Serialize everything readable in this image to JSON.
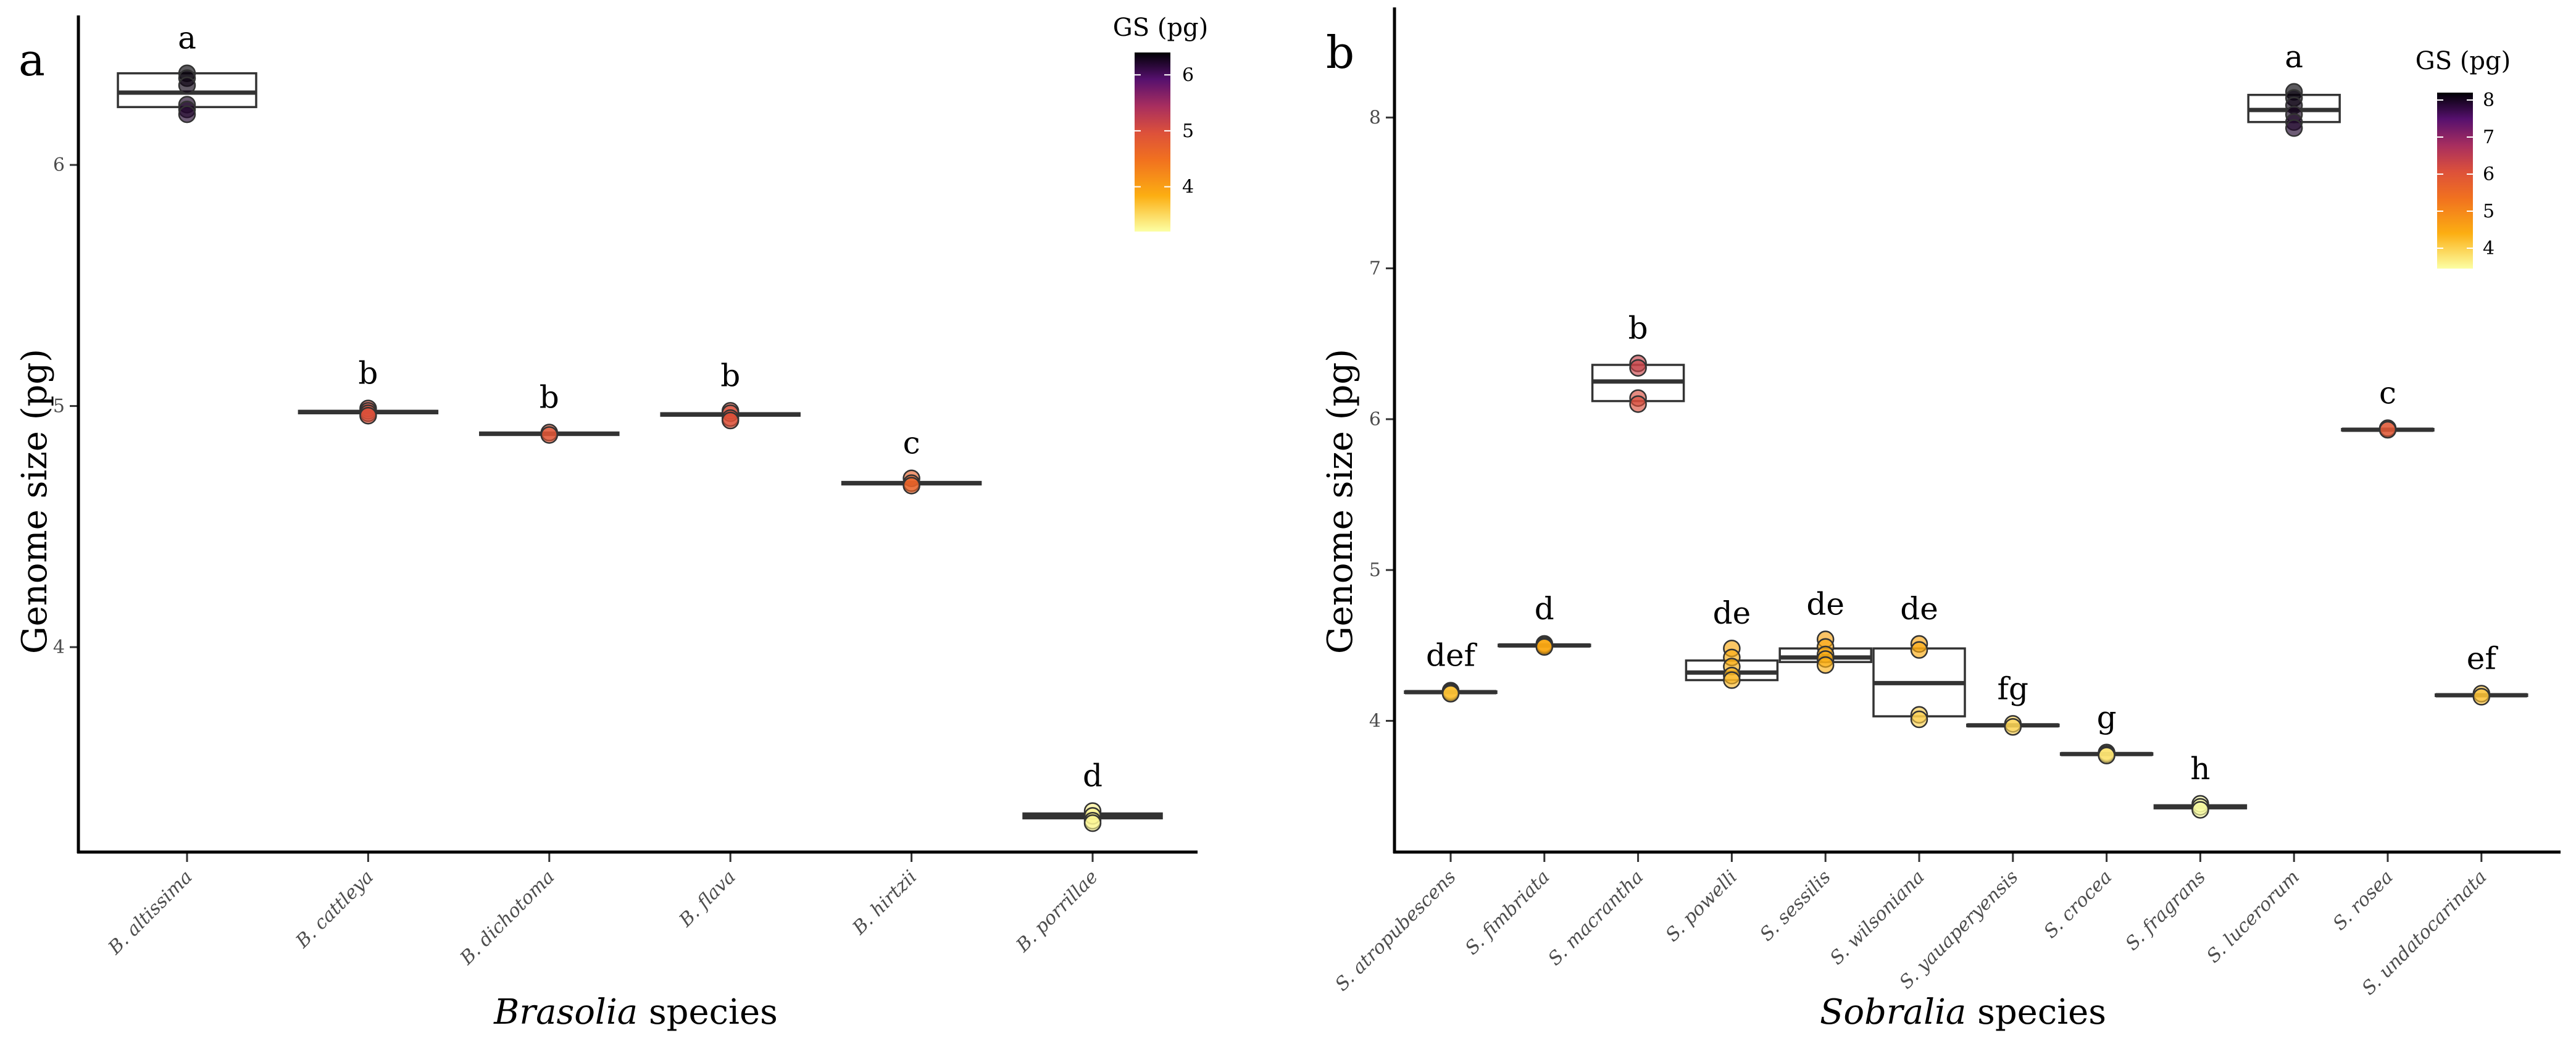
{
  "chart_data": [
    {
      "type": "box",
      "panel": "a",
      "xlabel_italic": "Brasolia",
      "xlabel_rest": " species",
      "ylabel": "Genome size (pg)",
      "ylim": [
        3.15,
        6.62
      ],
      "yticks": [
        4,
        5,
        6
      ],
      "legend": {
        "title": "GS (pg)",
        "range": [
          3.2,
          6.4
        ],
        "ticks": [
          4,
          5,
          6
        ]
      },
      "categories": [
        "B. altissima",
        "B. cattleya",
        "B. dichotoma",
        "B. flava",
        "B. hirtzii",
        "B. porrillae"
      ],
      "groups": [
        {
          "label": "a",
          "q1": 6.24,
          "median": 6.3,
          "q3": 6.38,
          "points": [
            6.38,
            6.36,
            6.33,
            6.25,
            6.23,
            6.21
          ]
        },
        {
          "label": "b",
          "q1": 4.97,
          "median": 4.975,
          "q3": 4.98,
          "points": [
            4.99,
            4.98,
            4.97,
            4.96
          ]
        },
        {
          "label": "b",
          "q1": 4.88,
          "median": 4.885,
          "q3": 4.89,
          "points": [
            4.89,
            4.88
          ]
        },
        {
          "label": "b",
          "q1": 4.96,
          "median": 4.965,
          "q3": 4.97,
          "points": [
            4.98,
            4.97,
            4.95,
            4.94
          ]
        },
        {
          "label": "c",
          "q1": 4.675,
          "median": 4.68,
          "q3": 4.685,
          "points": [
            4.7,
            4.68,
            4.67
          ]
        },
        {
          "label": "d",
          "q1": 3.29,
          "median": 3.3,
          "q3": 3.31,
          "points": [
            3.32,
            3.3,
            3.28,
            3.27
          ]
        }
      ]
    },
    {
      "type": "box",
      "panel": "b",
      "xlabel_italic": "Sobralia",
      "xlabel_rest": " species",
      "ylabel": "Genome size (pg)",
      "ylim": [
        3.13,
        8.73
      ],
      "yticks": [
        4,
        5,
        6,
        7,
        8
      ],
      "legend": {
        "title": "GS (pg)",
        "range": [
          3.45,
          8.2
        ],
        "ticks": [
          4,
          5,
          6,
          7,
          8
        ]
      },
      "categories": [
        "S. atropubescens",
        "S. fimbriata",
        "S. macrantha",
        "S. powelli",
        "S. sessilis",
        "S. wilsoniana",
        "S. yauaperyensis",
        "S. crocea",
        "S. fragrans",
        "S. lucerorum",
        "S. rosea",
        "S. undatocarinata"
      ],
      "groups": [
        {
          "label": "def",
          "q1": 4.185,
          "median": 4.19,
          "q3": 4.195,
          "points": [
            4.2,
            4.19,
            4.18
          ]
        },
        {
          "label": "d",
          "q1": 4.495,
          "median": 4.5,
          "q3": 4.505,
          "points": [
            4.51,
            4.5,
            4.49
          ]
        },
        {
          "label": "b",
          "q1": 6.12,
          "median": 6.25,
          "q3": 6.36,
          "points": [
            6.37,
            6.34,
            6.14,
            6.1
          ]
        },
        {
          "label": "de",
          "q1": 4.27,
          "median": 4.32,
          "q3": 4.4,
          "points": [
            4.48,
            4.42,
            4.36,
            4.3,
            4.27
          ]
        },
        {
          "label": "de",
          "q1": 4.39,
          "median": 4.42,
          "q3": 4.48,
          "points": [
            4.54,
            4.49,
            4.44,
            4.41,
            4.37
          ]
        },
        {
          "label": "de",
          "q1": 4.03,
          "median": 4.25,
          "q3": 4.48,
          "points": [
            4.51,
            4.47,
            4.04,
            4.01
          ]
        },
        {
          "label": "fg",
          "q1": 3.965,
          "median": 3.97,
          "q3": 3.975,
          "points": [
            3.98,
            3.96
          ]
        },
        {
          "label": "g",
          "q1": 3.775,
          "median": 3.78,
          "q3": 3.785,
          "points": [
            3.79,
            3.78,
            3.77
          ]
        },
        {
          "label": "h",
          "q1": 3.42,
          "median": 3.43,
          "q3": 3.44,
          "points": [
            3.45,
            3.43,
            3.41
          ]
        },
        {
          "label": "a",
          "q1": 7.97,
          "median": 8.05,
          "q3": 8.15,
          "points": [
            8.17,
            8.13,
            8.08,
            8.02,
            7.97,
            7.93
          ]
        },
        {
          "label": "c",
          "q1": 5.925,
          "median": 5.93,
          "q3": 5.935,
          "points": [
            5.94,
            5.93
          ]
        },
        {
          "label": "ef",
          "q1": 4.165,
          "median": 4.17,
          "q3": 4.175,
          "points": [
            4.18,
            4.16
          ]
        }
      ]
    }
  ]
}
